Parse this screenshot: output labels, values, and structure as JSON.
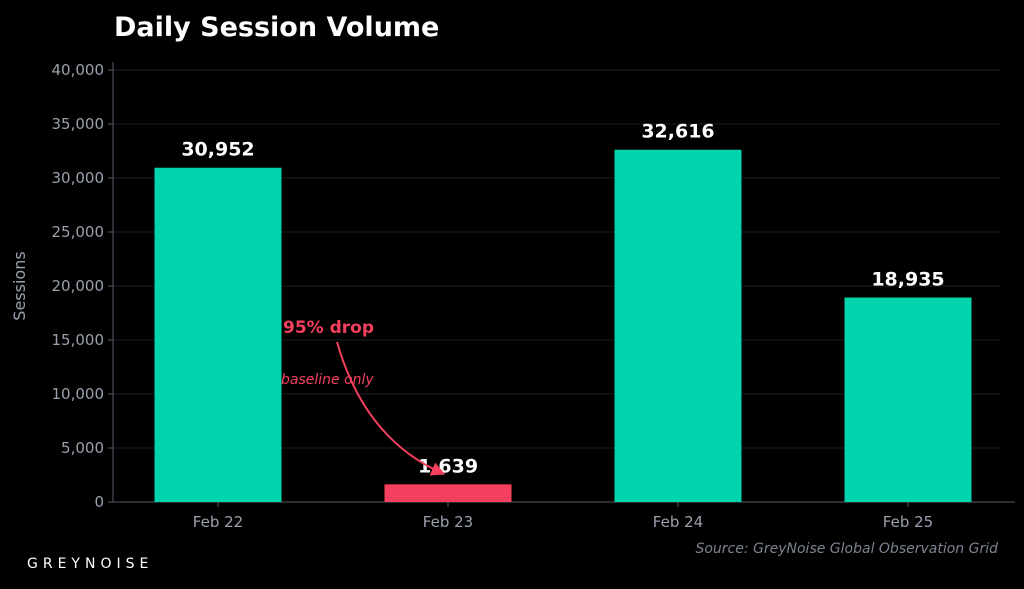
{
  "chart_data": {
    "type": "bar",
    "title": "Daily Session Volume",
    "xlabel": "",
    "ylabel": "Sessions",
    "categories": [
      "Feb 22",
      "Feb 23",
      "Feb 24",
      "Feb 25"
    ],
    "values": [
      30952,
      1639,
      32616,
      18935
    ],
    "data_labels": [
      "30,952",
      "1,639",
      "32,616",
      "18,935"
    ],
    "ylim": [
      0,
      40000
    ],
    "yticks": [
      0,
      5000,
      10000,
      15000,
      20000,
      25000,
      30000,
      35000,
      40000
    ],
    "ytick_labels": [
      "0",
      "5,000",
      "10,000",
      "15,000",
      "20,000",
      "25,000",
      "30,000",
      "35,000",
      "40,000"
    ],
    "grid": true,
    "bar_colors": [
      "#00d4ad",
      "#f43f5e",
      "#00d4ad",
      "#00d4ad"
    ],
    "annotation": {
      "text": "95% drop",
      "subtext": "baseline only",
      "target": "Feb 23",
      "color": "#f43f5e"
    }
  },
  "source": "Source: GreyNoise Global Observation Grid",
  "logo": "GREYNOISE"
}
